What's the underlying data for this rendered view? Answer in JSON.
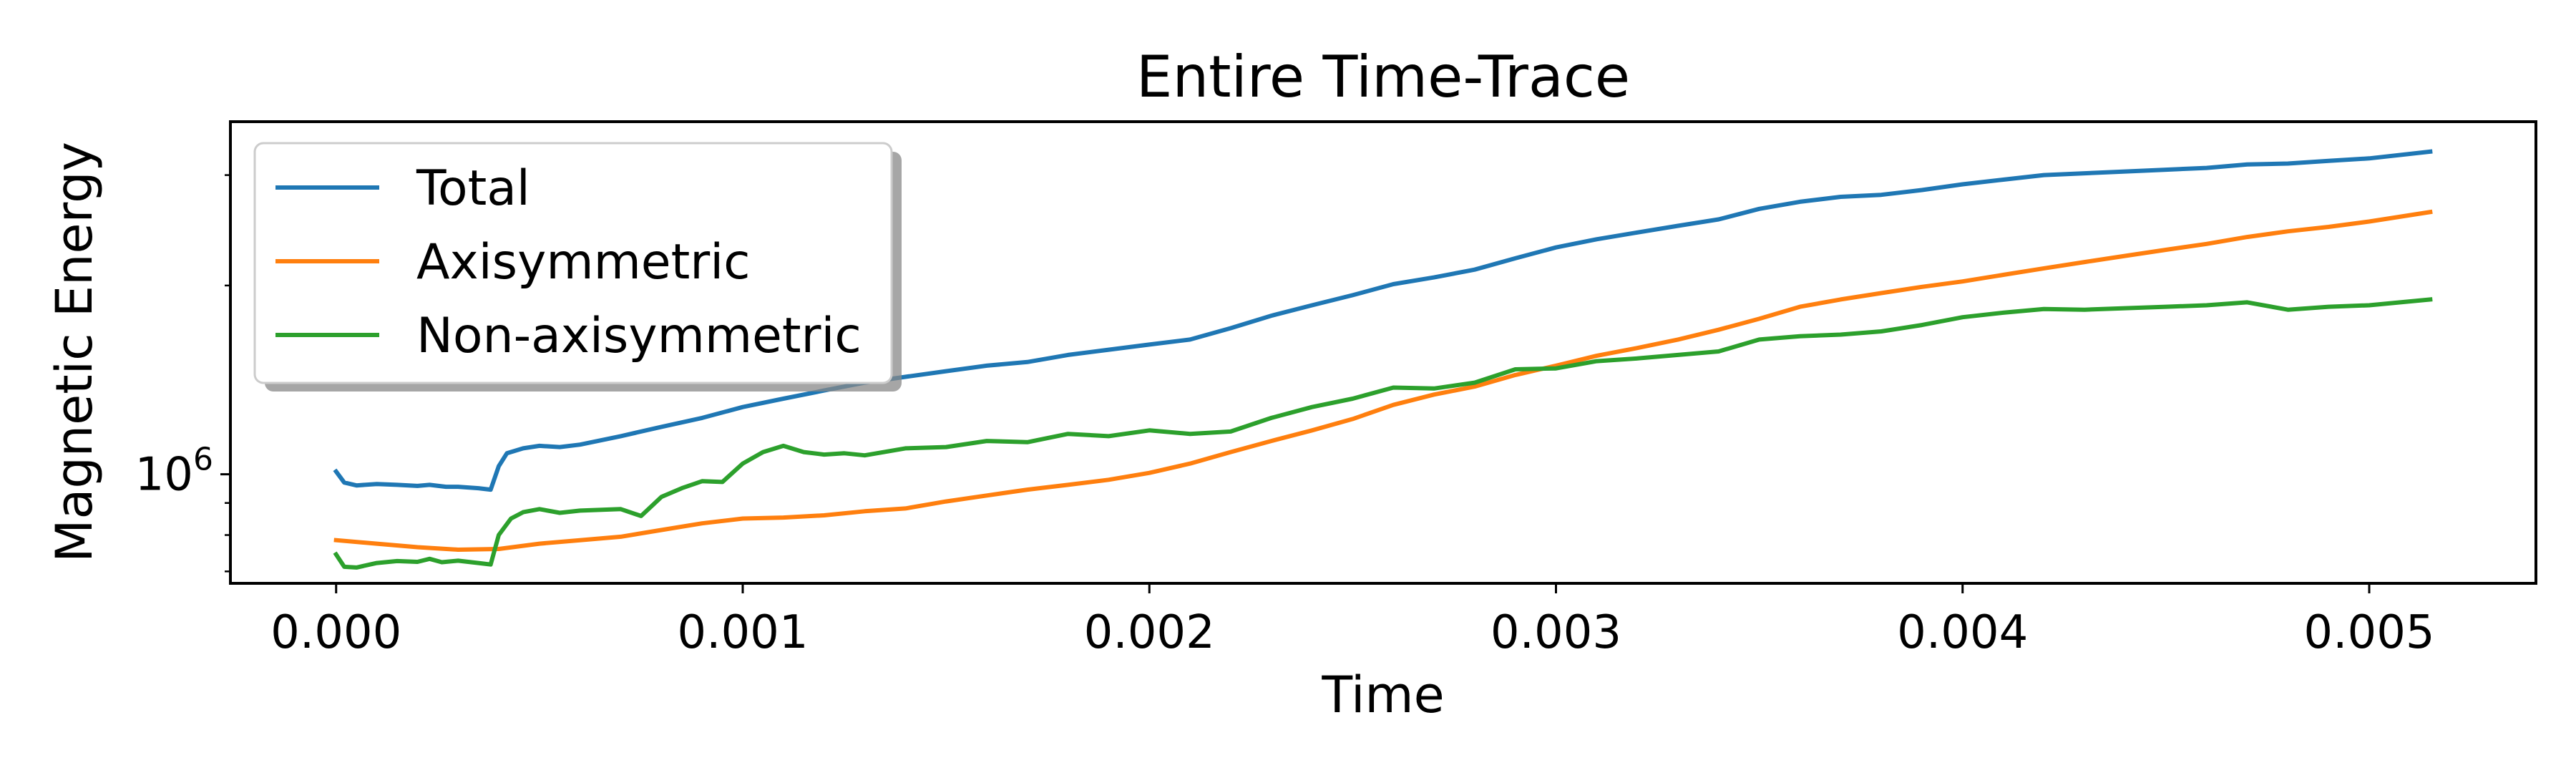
{
  "chart_data": {
    "type": "line",
    "title": "Entire Time-Trace",
    "xlabel": "Time",
    "ylabel": "Magnetic Energy",
    "xlim": [
      -0.00026,
      0.00541
    ],
    "ylim": [
      670000,
      3650000
    ],
    "yscale": "log",
    "x_ticks": [
      0.0,
      0.001,
      0.002,
      0.003,
      0.004,
      0.005
    ],
    "x_tick_labels": [
      "0.000",
      "0.001",
      "0.002",
      "0.003",
      "0.004",
      "0.005"
    ],
    "y_ticks": [
      1000000
    ],
    "y_tick_base": "10",
    "y_tick_exponent": "6",
    "legend_position": "upper left",
    "grid": false,
    "series": [
      {
        "name": "Total",
        "color": "#1f77b4",
        "points": [
          [
            0.0,
            1010000
          ],
          [
            2e-05,
            970000
          ],
          [
            5e-05,
            960000
          ],
          [
            0.0001,
            965000
          ],
          [
            0.00015,
            962000
          ],
          [
            0.0002,
            958000
          ],
          [
            0.00023,
            962000
          ],
          [
            0.00027,
            955000
          ],
          [
            0.0003,
            955000
          ],
          [
            0.00035,
            950000
          ],
          [
            0.00038,
            945000
          ],
          [
            0.0004,
            1030000
          ],
          [
            0.00042,
            1080000
          ],
          [
            0.00046,
            1100000
          ],
          [
            0.0005,
            1110000
          ],
          [
            0.00055,
            1105000
          ],
          [
            0.0006,
            1115000
          ],
          [
            0.0007,
            1150000
          ],
          [
            0.0008,
            1190000
          ],
          [
            0.0009,
            1230000
          ],
          [
            0.001,
            1280000
          ],
          [
            0.0011,
            1320000
          ],
          [
            0.0012,
            1360000
          ],
          [
            0.0013,
            1400000
          ],
          [
            0.0014,
            1430000
          ],
          [
            0.0015,
            1460000
          ],
          [
            0.0016,
            1490000
          ],
          [
            0.0017,
            1510000
          ],
          [
            0.0018,
            1550000
          ],
          [
            0.0019,
            1580000
          ],
          [
            0.002,
            1610000
          ],
          [
            0.0021,
            1640000
          ],
          [
            0.0022,
            1710000
          ],
          [
            0.0023,
            1790000
          ],
          [
            0.0024,
            1860000
          ],
          [
            0.0025,
            1930000
          ],
          [
            0.0026,
            2010000
          ],
          [
            0.0027,
            2060000
          ],
          [
            0.0028,
            2120000
          ],
          [
            0.0029,
            2210000
          ],
          [
            0.003,
            2300000
          ],
          [
            0.0031,
            2370000
          ],
          [
            0.0032,
            2430000
          ],
          [
            0.0033,
            2490000
          ],
          [
            0.0034,
            2550000
          ],
          [
            0.0035,
            2650000
          ],
          [
            0.0036,
            2720000
          ],
          [
            0.0037,
            2770000
          ],
          [
            0.0038,
            2790000
          ],
          [
            0.0039,
            2840000
          ],
          [
            0.004,
            2900000
          ],
          [
            0.0041,
            2950000
          ],
          [
            0.0042,
            3000000
          ],
          [
            0.0043,
            3020000
          ],
          [
            0.0044,
            3040000
          ],
          [
            0.0045,
            3060000
          ],
          [
            0.0046,
            3080000
          ],
          [
            0.0047,
            3120000
          ],
          [
            0.0048,
            3130000
          ],
          [
            0.0049,
            3160000
          ],
          [
            0.005,
            3190000
          ],
          [
            0.00515,
            3270000
          ]
        ]
      },
      {
        "name": "Axisymmetric",
        "color": "#ff7f0e",
        "points": [
          [
            0.0,
            785000
          ],
          [
            0.0001,
            775000
          ],
          [
            0.0002,
            765000
          ],
          [
            0.0003,
            758000
          ],
          [
            0.0004,
            760000
          ],
          [
            0.0005,
            775000
          ],
          [
            0.0006,
            785000
          ],
          [
            0.0007,
            795000
          ],
          [
            0.0008,
            815000
          ],
          [
            0.0009,
            835000
          ],
          [
            0.001,
            850000
          ],
          [
            0.0011,
            853000
          ],
          [
            0.0012,
            860000
          ],
          [
            0.0013,
            873000
          ],
          [
            0.0014,
            882000
          ],
          [
            0.0015,
            905000
          ],
          [
            0.0016,
            925000
          ],
          [
            0.0017,
            945000
          ],
          [
            0.0018,
            962000
          ],
          [
            0.0019,
            980000
          ],
          [
            0.002,
            1005000
          ],
          [
            0.0021,
            1040000
          ],
          [
            0.0022,
            1085000
          ],
          [
            0.0023,
            1130000
          ],
          [
            0.0024,
            1175000
          ],
          [
            0.0025,
            1225000
          ],
          [
            0.0026,
            1290000
          ],
          [
            0.0027,
            1340000
          ],
          [
            0.0028,
            1380000
          ],
          [
            0.0029,
            1440000
          ],
          [
            0.003,
            1490000
          ],
          [
            0.0031,
            1545000
          ],
          [
            0.0032,
            1590000
          ],
          [
            0.0033,
            1640000
          ],
          [
            0.0034,
            1700000
          ],
          [
            0.0035,
            1770000
          ],
          [
            0.0036,
            1850000
          ],
          [
            0.0037,
            1900000
          ],
          [
            0.0038,
            1945000
          ],
          [
            0.0039,
            1990000
          ],
          [
            0.004,
            2030000
          ],
          [
            0.0041,
            2080000
          ],
          [
            0.0042,
            2130000
          ],
          [
            0.0043,
            2180000
          ],
          [
            0.0044,
            2230000
          ],
          [
            0.0045,
            2280000
          ],
          [
            0.0046,
            2330000
          ],
          [
            0.0047,
            2390000
          ],
          [
            0.0048,
            2440000
          ],
          [
            0.0049,
            2480000
          ],
          [
            0.005,
            2530000
          ],
          [
            0.00515,
            2620000
          ]
        ]
      },
      {
        "name": "Non-axisymmetric",
        "color": "#2ca02c",
        "points": [
          [
            0.0,
            745000
          ],
          [
            2e-05,
            712000
          ],
          [
            5e-05,
            710000
          ],
          [
            0.0001,
            722000
          ],
          [
            0.00015,
            727000
          ],
          [
            0.0002,
            725000
          ],
          [
            0.00023,
            733000
          ],
          [
            0.00026,
            724000
          ],
          [
            0.0003,
            728000
          ],
          [
            0.00035,
            722000
          ],
          [
            0.00038,
            718000
          ],
          [
            0.0004,
            800000
          ],
          [
            0.00043,
            850000
          ],
          [
            0.00046,
            870000
          ],
          [
            0.0005,
            880000
          ],
          [
            0.00055,
            868000
          ],
          [
            0.0006,
            875000
          ],
          [
            0.0007,
            880000
          ],
          [
            0.00075,
            858000
          ],
          [
            0.0008,
            920000
          ],
          [
            0.00085,
            950000
          ],
          [
            0.0009,
            975000
          ],
          [
            0.00095,
            972000
          ],
          [
            0.001,
            1040000
          ],
          [
            0.00105,
            1085000
          ],
          [
            0.0011,
            1110000
          ],
          [
            0.00115,
            1085000
          ],
          [
            0.0012,
            1075000
          ],
          [
            0.00125,
            1080000
          ],
          [
            0.0013,
            1072000
          ],
          [
            0.0014,
            1100000
          ],
          [
            0.0015,
            1105000
          ],
          [
            0.0016,
            1130000
          ],
          [
            0.0017,
            1125000
          ],
          [
            0.0018,
            1160000
          ],
          [
            0.0019,
            1150000
          ],
          [
            0.002,
            1175000
          ],
          [
            0.0021,
            1160000
          ],
          [
            0.0022,
            1170000
          ],
          [
            0.0023,
            1230000
          ],
          [
            0.0024,
            1280000
          ],
          [
            0.0025,
            1320000
          ],
          [
            0.0026,
            1375000
          ],
          [
            0.0027,
            1370000
          ],
          [
            0.0028,
            1400000
          ],
          [
            0.0029,
            1470000
          ],
          [
            0.003,
            1475000
          ],
          [
            0.0031,
            1515000
          ],
          [
            0.0032,
            1530000
          ],
          [
            0.0033,
            1550000
          ],
          [
            0.0034,
            1570000
          ],
          [
            0.0035,
            1640000
          ],
          [
            0.0036,
            1660000
          ],
          [
            0.0037,
            1670000
          ],
          [
            0.0038,
            1690000
          ],
          [
            0.0039,
            1730000
          ],
          [
            0.004,
            1780000
          ],
          [
            0.0041,
            1810000
          ],
          [
            0.0042,
            1835000
          ],
          [
            0.0043,
            1830000
          ],
          [
            0.0044,
            1840000
          ],
          [
            0.0045,
            1850000
          ],
          [
            0.0046,
            1860000
          ],
          [
            0.0047,
            1880000
          ],
          [
            0.0048,
            1830000
          ],
          [
            0.0049,
            1850000
          ],
          [
            0.005,
            1860000
          ],
          [
            0.00515,
            1900000
          ]
        ]
      }
    ]
  }
}
